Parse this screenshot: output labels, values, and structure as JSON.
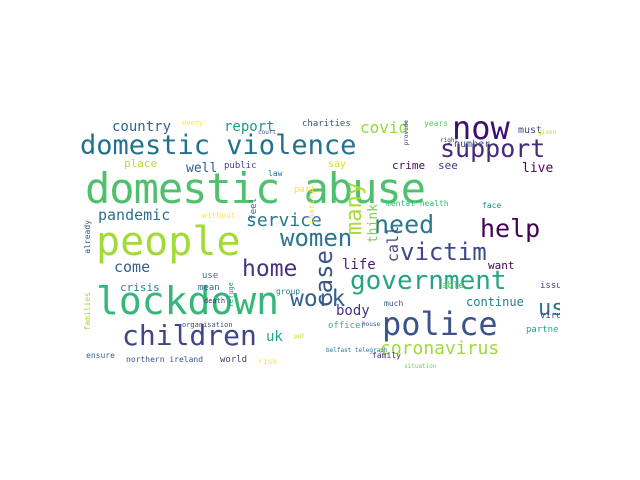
{
  "wordcloud": {
    "words": [
      {
        "text": "domestic abuse",
        "color": "#4fc06d"
      },
      {
        "text": "people",
        "color": "#a2da37"
      },
      {
        "text": "lockdown",
        "color": "#35b779"
      },
      {
        "text": "domestic violence",
        "color": "#23718e"
      },
      {
        "text": "now",
        "color": "#3b0f70"
      },
      {
        "text": "government",
        "color": "#25a584"
      },
      {
        "text": "police",
        "color": "#3b528b"
      },
      {
        "text": "children",
        "color": "#414487"
      },
      {
        "text": "support",
        "color": "#482878"
      },
      {
        "text": "women",
        "color": "#2b758e"
      },
      {
        "text": "need",
        "color": "#2a788e"
      },
      {
        "text": "help",
        "color": "#440154"
      },
      {
        "text": "victim",
        "color": "#3f4889"
      },
      {
        "text": "work",
        "color": "#33638d"
      },
      {
        "text": "home",
        "color": "#46327e"
      },
      {
        "text": "case",
        "color": "#3b528b"
      },
      {
        "text": "many",
        "color": "#a8db34"
      },
      {
        "text": "coronavirus",
        "color": "#a0da39"
      },
      {
        "text": "us",
        "color": "#2c728e"
      },
      {
        "text": "service",
        "color": "#2a788e"
      },
      {
        "text": "pandemic",
        "color": "#2d708e"
      },
      {
        "text": "covid",
        "color": "#95d840"
      },
      {
        "text": "country",
        "color": "#32648e"
      },
      {
        "text": "report",
        "color": "#1f988b"
      },
      {
        "text": "come",
        "color": "#33638d"
      },
      {
        "text": "call",
        "color": "#414487"
      },
      {
        "text": "think",
        "color": "#7ad151"
      },
      {
        "text": "life",
        "color": "#481b6d"
      },
      {
        "text": "body",
        "color": "#46337e"
      },
      {
        "text": "uk",
        "color": "#1fa187"
      },
      {
        "text": "live",
        "color": "#46085c"
      },
      {
        "text": "see",
        "color": "#453781"
      },
      {
        "text": "number",
        "color": "#39568c"
      },
      {
        "text": "crime",
        "color": "#46085c"
      },
      {
        "text": "continue",
        "color": "#287d8e"
      },
      {
        "text": "want",
        "color": "#440154"
      },
      {
        "text": "school",
        "color": "#73d056"
      },
      {
        "text": "crisis",
        "color": "#25848e"
      },
      {
        "text": "place",
        "color": "#b5de2b"
      },
      {
        "text": "well",
        "color": "#355e8d"
      },
      {
        "text": "must",
        "color": "#3e4c8a"
      },
      {
        "text": "years",
        "color": "#5ec962"
      },
      {
        "text": "charities",
        "color": "#3b528b"
      },
      {
        "text": "every",
        "color": "#fde725"
      },
      {
        "text": "public",
        "color": "#414487"
      },
      {
        "text": "law",
        "color": "#2d708e"
      },
      {
        "text": "say",
        "color": "#d8e219"
      },
      {
        "text": "feel",
        "color": "#31688e"
      },
      {
        "text": "charity",
        "color": "#fde725"
      },
      {
        "text": "part",
        "color": "#fde725"
      },
      {
        "text": "mental health",
        "color": "#35b779"
      },
      {
        "text": "face",
        "color": "#25848e"
      },
      {
        "text": "working",
        "color": "#7ad151"
      },
      {
        "text": "without",
        "color": "#fde725"
      },
      {
        "text": "already",
        "color": "#3b528b"
      },
      {
        "text": "families",
        "color": "#a0da39"
      },
      {
        "text": "use",
        "color": "#2a788e"
      },
      {
        "text": "mean",
        "color": "#31688e"
      },
      {
        "text": "refuge",
        "color": "#20928c"
      },
      {
        "text": "death",
        "color": "#482878"
      },
      {
        "text": "risk",
        "color": "#fde725"
      },
      {
        "text": "group",
        "color": "#287d8e"
      },
      {
        "text": "much",
        "color": "#3b528b"
      },
      {
        "text": "able",
        "color": "#5ec962"
      },
      {
        "text": "issue",
        "color": "#414487"
      },
      {
        "text": "virus",
        "color": "#3e4a89"
      },
      {
        "text": "partner",
        "color": "#22a884"
      },
      {
        "text": "organisation",
        "color": "#3e4a89"
      },
      {
        "text": "officer",
        "color": "#35b779"
      },
      {
        "text": "ensure",
        "color": "#32648e"
      },
      {
        "text": "northern ireland",
        "color": "#3b528b"
      },
      {
        "text": "world",
        "color": "#443983"
      },
      {
        "text": "belfast telegraph",
        "color": "#2a788e"
      },
      {
        "text": "family",
        "color": "#482878"
      },
      {
        "text": "situation",
        "color": "#6ccd5a"
      },
      {
        "text": "given",
        "color": "#c8e020"
      },
      {
        "text": "court",
        "color": "#3b528b"
      },
      {
        "text": "right",
        "color": "#46337e"
      },
      {
        "text": "provide",
        "color": "#3e4c8a"
      },
      {
        "text": "house",
        "color": "#3b528b"
      },
      {
        "text": "put",
        "color": "#c2df23"
      }
    ]
  }
}
